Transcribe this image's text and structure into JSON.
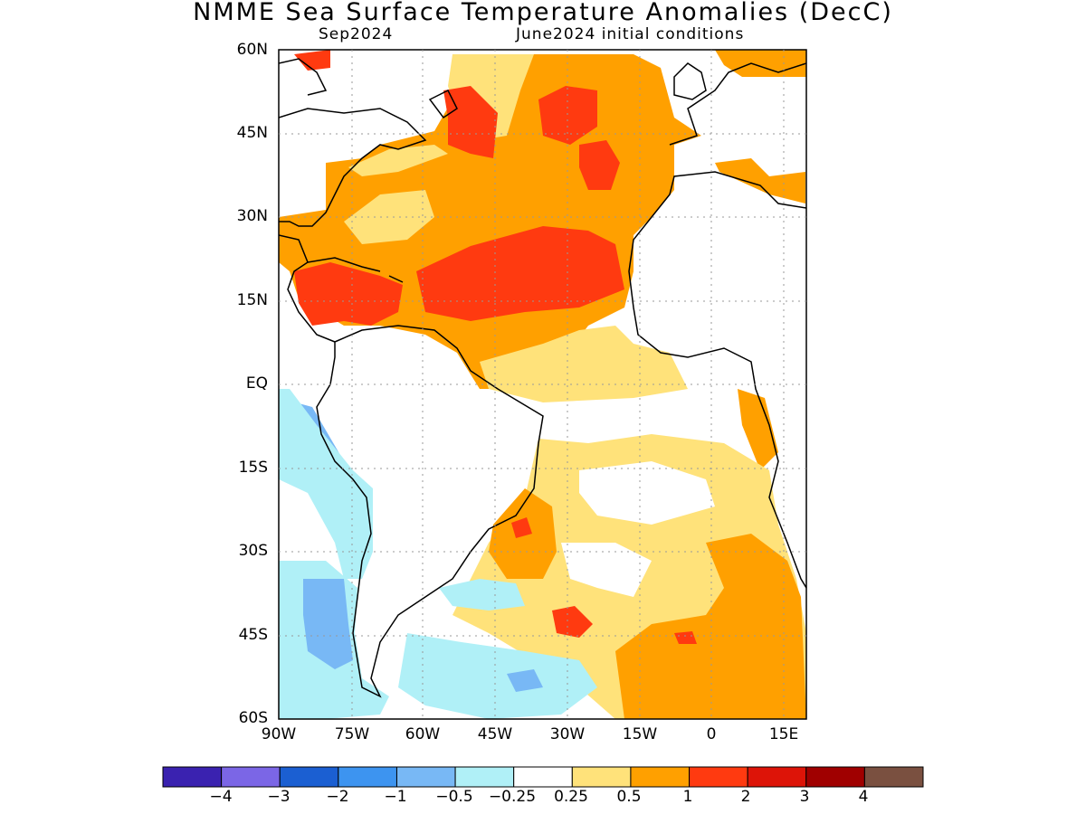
{
  "title": "NMME Sea Surface Temperature Anomalies (DecC)",
  "subtitle_left": "Sep2024",
  "subtitle_right": "June2024 initial conditions",
  "map": {
    "projection": "lat-lon",
    "extent": {
      "lon_min": -90,
      "lon_max": 19,
      "lat_min": -60,
      "lat_max": 60
    },
    "lat_ticks": [
      {
        "value": 60,
        "label": "60N"
      },
      {
        "value": 45,
        "label": "45N"
      },
      {
        "value": 30,
        "label": "30N"
      },
      {
        "value": 15,
        "label": "15N"
      },
      {
        "value": 0,
        "label": "EQ"
      },
      {
        "value": -15,
        "label": "15S"
      },
      {
        "value": -30,
        "label": "30S"
      },
      {
        "value": -45,
        "label": "45S"
      },
      {
        "value": -60,
        "label": "60S"
      }
    ],
    "lon_ticks": [
      {
        "value": -90,
        "label": "90W"
      },
      {
        "value": -75,
        "label": "75W"
      },
      {
        "value": -60,
        "label": "60W"
      },
      {
        "value": -45,
        "label": "45W"
      },
      {
        "value": -30,
        "label": "30W"
      },
      {
        "value": -15,
        "label": "15W"
      },
      {
        "value": 0,
        "label": "0"
      },
      {
        "value": 15,
        "label": "15E"
      }
    ],
    "grid": true
  },
  "colorbar": {
    "colors": [
      "#3a22b0",
      "#7b66e6",
      "#1b5fd2",
      "#3d94f0",
      "#78b8f5",
      "#b0f0f7",
      "#ffffff",
      "#ffe27a",
      "#ffa000",
      "#ff3a10",
      "#dd1408",
      "#a00000",
      "#7a5040"
    ],
    "labels": [
      "−4",
      "−3",
      "−2",
      "−1",
      "−0.5",
      "−0.25",
      "0.25",
      "0.5",
      "1",
      "2",
      "3",
      "4"
    ]
  },
  "colors": {
    "ocean_neutral": "#ffffff",
    "land_outline": "#000000",
    "grid": "#999999"
  }
}
